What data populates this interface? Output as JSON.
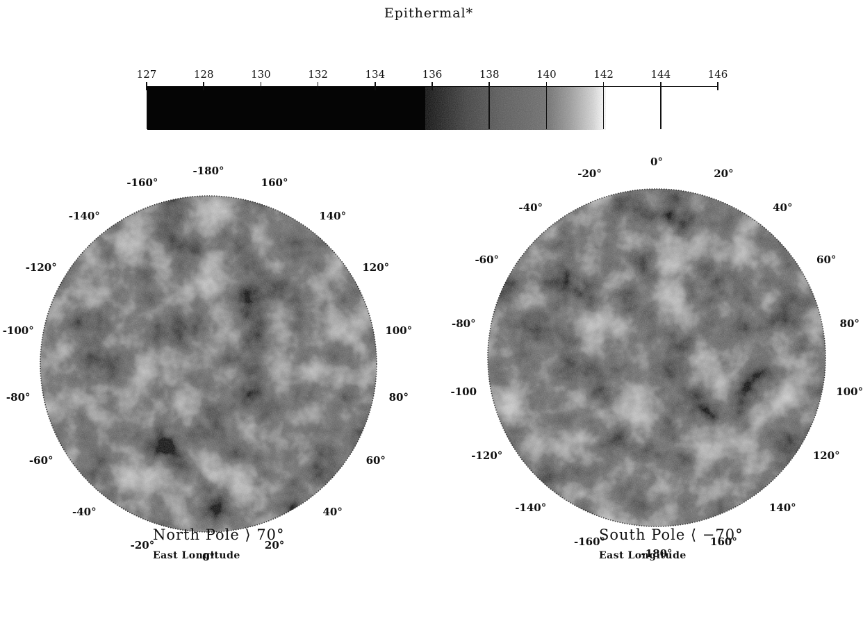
{
  "title": "Epithermal*",
  "colorbar": {
    "ticks": [
      "127",
      "128",
      "130",
      "132",
      "134",
      "136",
      "138",
      "140",
      "142",
      "144",
      "146"
    ],
    "tick_values": [
      127,
      128,
      130,
      132,
      134,
      136,
      138,
      140,
      142,
      144,
      146
    ],
    "colors": {
      "dark": "#050505",
      "light": "#ffffff"
    }
  },
  "maps": [
    {
      "id": "north",
      "caption": "North Pole ⟩ 70°",
      "subcaption": "East Longitude",
      "labels": [
        "-180°",
        "160°",
        "140°",
        "120°",
        "100°",
        "80°",
        "60°",
        "40°",
        "20°",
        "0°",
        "-20°",
        "-40°",
        "-60°",
        "-80°",
        "-100°",
        "-120°",
        "-140°",
        "-160°"
      ]
    },
    {
      "id": "south",
      "caption": "South Pole ⟨ −70°",
      "subcaption": "East Longitude",
      "labels": [
        "0°",
        "20°",
        "40°",
        "60°",
        "80°",
        "100°",
        "120°",
        "140°",
        "160°",
        "-180°",
        "-160°",
        "-140°",
        "-120°",
        "-100",
        "-80°",
        "-60°",
        "-40°",
        "-20°"
      ]
    }
  ]
}
